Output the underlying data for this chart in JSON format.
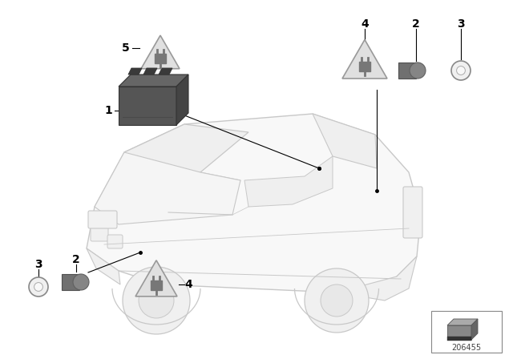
{
  "bg_color": "#ffffff",
  "fig_width": 6.4,
  "fig_height": 4.48,
  "dpi": 100,
  "diagram_number": "206455",
  "car_color": "#c8c8c8",
  "car_face": "#f8f8f8",
  "module_color": "#555555",
  "sensor_color": "#888888",
  "triangle_face": "#e0e0e0",
  "triangle_edge": "#999999",
  "plug_color": "#777777",
  "label_fontsize": 10,
  "label_fontweight": "bold"
}
